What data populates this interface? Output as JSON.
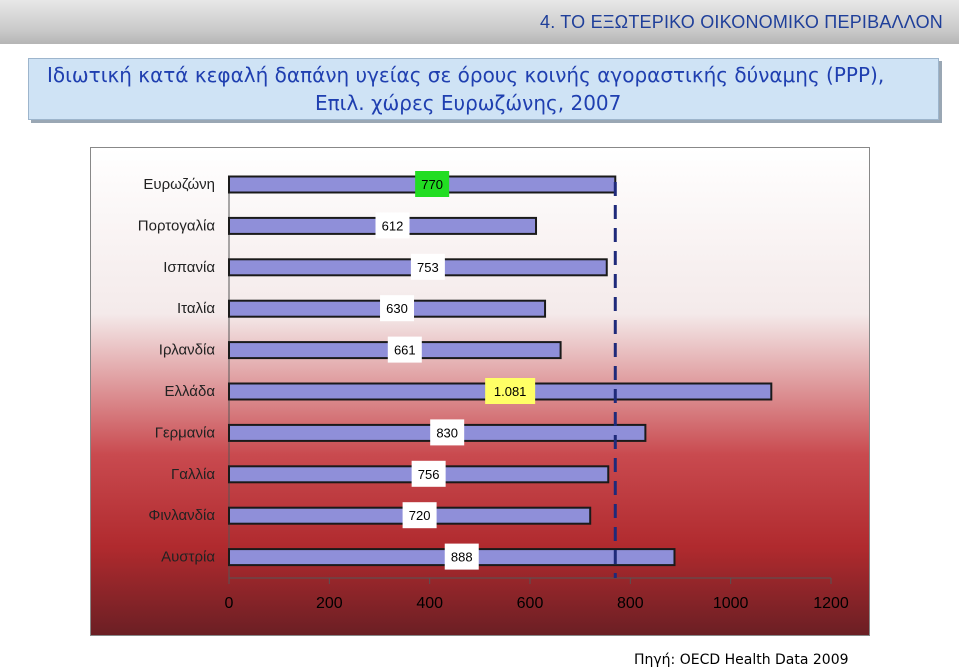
{
  "header": {
    "section_title": "4.  ΤΟ ΕΞΩΤΕΡΙΚΟ ΟΙΚΟΝΟΜΙΚΟ ΠΕΡΙΒΑΛΛΟΝ"
  },
  "subtitle": {
    "line1": "Ιδιωτική κατά κεφαλή δαπάνη υγείας σε όρους κοινής αγοραστικής δύναμης (PPP),",
    "line2": "Επιλ. χώρες Ευρωζώνης, 2007"
  },
  "source": "Πηγή: OECD Health Data 2009",
  "colors": {
    "bar_fill": "#8f8fd9",
    "bar_border": "#1a1a1a",
    "reference_line": "#1f2a7a",
    "highlight_eurozone": "#22dd22",
    "highlight_greece": "#ffff66",
    "label_bg": "#ffffff"
  },
  "chart_data": {
    "type": "bar",
    "orientation": "horizontal",
    "categories": [
      "Ευρωζώνη",
      "Πορτογαλία",
      "Ισπανία",
      "Ιταλία",
      "Ιρλανδία",
      "Ελλάδα",
      "Γερμανία",
      "Γαλλία",
      "Φινλανδία",
      "Αυστρία"
    ],
    "values": [
      770,
      612,
      753,
      630,
      661,
      1081,
      830,
      756,
      720,
      888
    ],
    "value_labels": [
      "770",
      "612",
      "753",
      "630",
      "661",
      "1.081",
      "830",
      "756",
      "720",
      "888"
    ],
    "x_ticks": [
      "0",
      "200",
      "400",
      "600",
      "800",
      "1000",
      "1200"
    ],
    "xlim": [
      0,
      1200
    ],
    "reference_line": {
      "value": 770,
      "style": "dashed"
    },
    "highlight": {
      "Ευρωζώνη": "#22dd22",
      "Ελλάδα": "#ffff66"
    },
    "grid": false,
    "legend": false
  }
}
